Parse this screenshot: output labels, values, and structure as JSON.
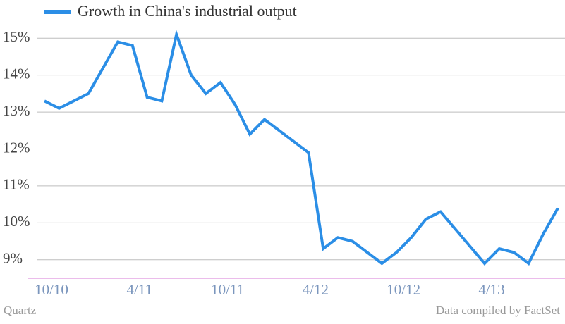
{
  "chart_data": {
    "type": "line",
    "series": [
      {
        "name": "Growth in China's industrial output",
        "color": "#2b8ee6",
        "values": [
          13.3,
          13.1,
          13.5,
          14.9,
          14.8,
          13.4,
          13.3,
          15.1,
          14.0,
          13.5,
          13.8,
          13.2,
          12.4,
          12.8,
          11.9,
          9.3,
          9.6,
          9.5,
          8.9,
          9.2,
          9.6,
          10.1,
          10.3,
          8.9,
          9.3,
          9.2,
          8.9,
          9.7,
          10.4
        ]
      }
    ],
    "x": [
      "2010-10",
      "2010-11",
      "2011-01",
      "2011-03",
      "2011-04",
      "2011-05",
      "2011-06",
      "2011-07",
      "2011-08",
      "2011-09",
      "2011-10",
      "2011-11",
      "2011-12",
      "2012-01",
      "2012-04",
      "2012-05",
      "2012-06",
      "2012-07",
      "2012-09",
      "2012-10",
      "2012-11",
      "2012-12",
      "2013-01",
      "2013-04",
      "2013-05",
      "2013-06",
      "2013-07",
      "2013-08",
      "2013-09"
    ],
    "xlim": [
      "2010-10",
      "2013-09"
    ],
    "xticks": [
      {
        "value": "2010-10",
        "label": "10/10"
      },
      {
        "value": "2011-04",
        "label": "4/11"
      },
      {
        "value": "2011-10",
        "label": "10/11"
      },
      {
        "value": "2012-04",
        "label": "4/12"
      },
      {
        "value": "2012-10",
        "label": "10/12"
      },
      {
        "value": "2013-04",
        "label": "4/13"
      }
    ],
    "ylim": [
      8.5,
      15.5
    ],
    "yticks": [
      {
        "value": 9,
        "label": "9%"
      },
      {
        "value": 10,
        "label": "10%"
      },
      {
        "value": 11,
        "label": "11%"
      },
      {
        "value": 12,
        "label": "12%"
      },
      {
        "value": 13,
        "label": "13%"
      },
      {
        "value": 14,
        "label": "14%"
      },
      {
        "value": 15,
        "label": "15%"
      }
    ],
    "grid": true,
    "legend": "top-left",
    "source_left": "Quartz",
    "source_right": "Data compiled by FactSet"
  }
}
